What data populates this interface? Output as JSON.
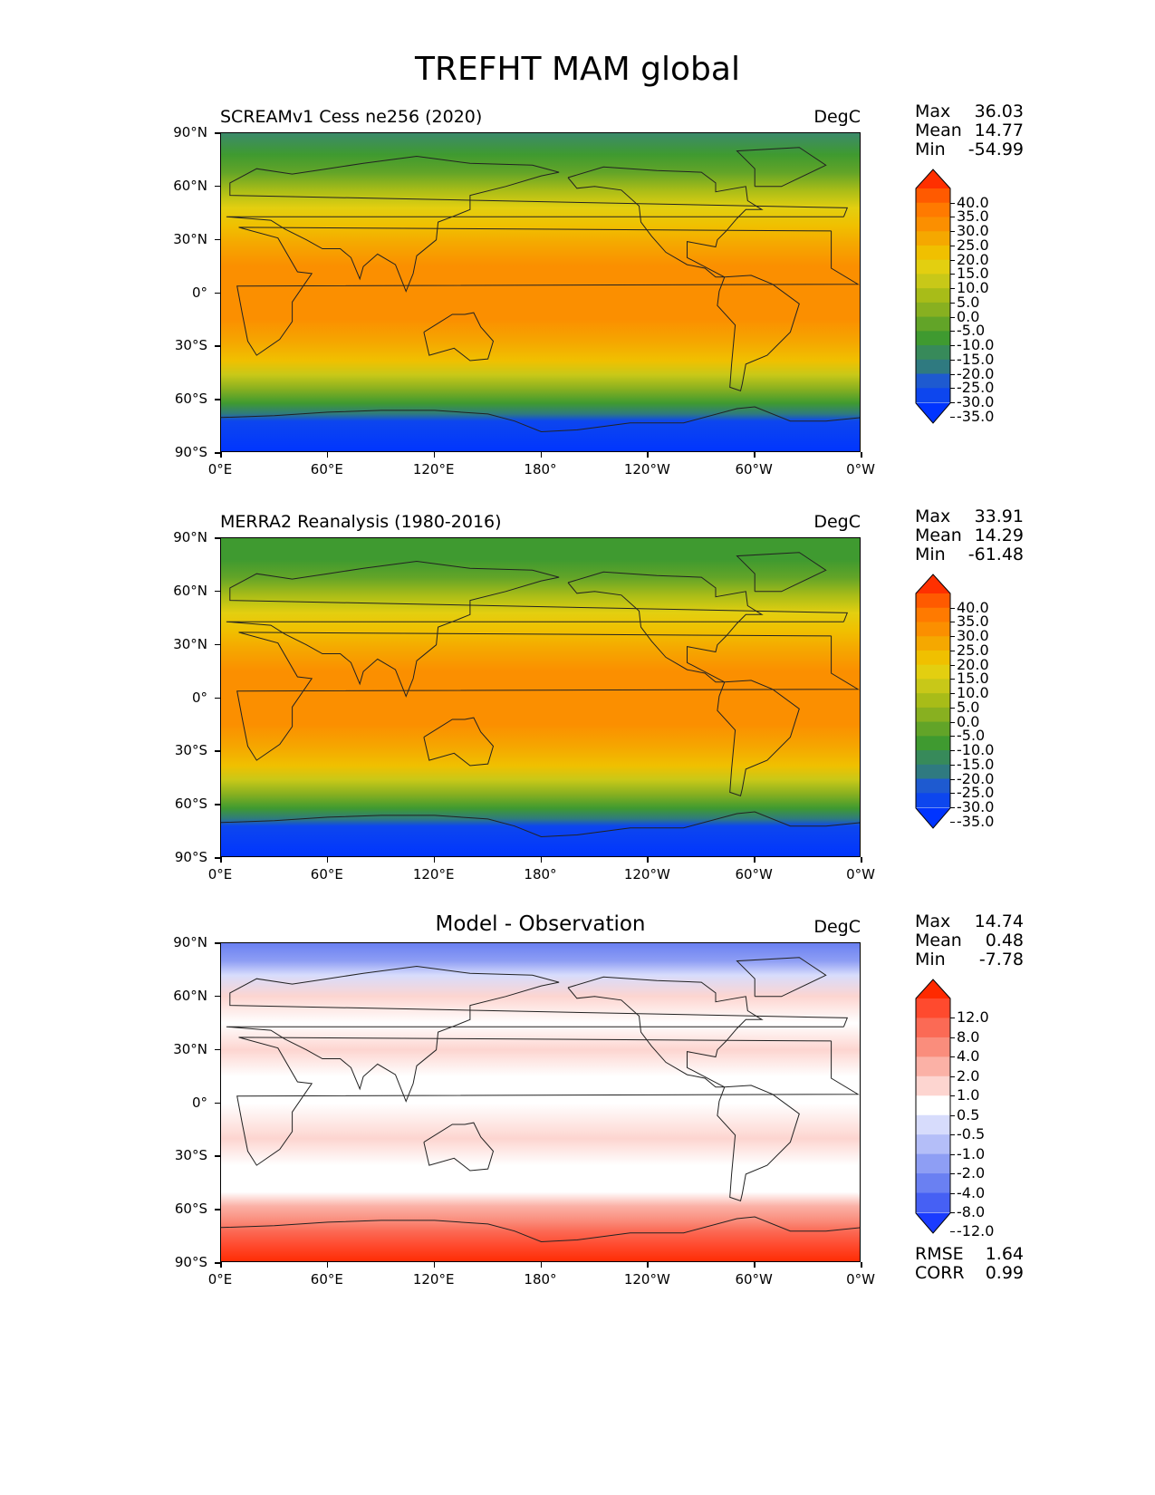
{
  "figure": {
    "title": "TREFHT MAM global"
  },
  "axes": {
    "lat_ticks": [
      "90°N",
      "60°N",
      "30°N",
      "0°",
      "30°S",
      "60°S",
      "90°S"
    ],
    "lon_ticks": [
      "0°E",
      "60°E",
      "120°E",
      "180°",
      "120°W",
      "60°W",
      "0°W"
    ]
  },
  "panels": [
    {
      "title": "SCREAMv1 Cess ne256 (2020)",
      "units": "DegC",
      "stats": [
        {
          "label": "Max",
          "value": "36.03"
        },
        {
          "label": "Mean",
          "value": "14.77"
        },
        {
          "label": "Min",
          "value": "-54.99"
        }
      ],
      "colorbar": {
        "ticks": [
          "40.0",
          "35.0",
          "30.0",
          "25.0",
          "20.0",
          "15.0",
          "10.0",
          "5.0",
          "0.0",
          "-5.0",
          "-10.0",
          "-15.0",
          "-20.0",
          "-25.0",
          "-30.0",
          "-35.0"
        ],
        "colors": [
          "#ff3000",
          "#ff5a00",
          "#ff7a00",
          "#fb8f00",
          "#f5a800",
          "#f0c000",
          "#e3cf10",
          "#c8c818",
          "#a8bc18",
          "#88b020",
          "#62a428",
          "#3f9a30",
          "#378a5a",
          "#2f7a80",
          "#1e5ad0",
          "#0d46ee",
          "#0034ff"
        ]
      },
      "map_gradient": [
        {
          "lat": 90,
          "color": "#3c8a6a"
        },
        {
          "lat": 78,
          "color": "#3f9a30"
        },
        {
          "lat": 68,
          "color": "#62a428"
        },
        {
          "lat": 58,
          "color": "#a8bc18"
        },
        {
          "lat": 48,
          "color": "#e3cf10"
        },
        {
          "lat": 38,
          "color": "#f0c000"
        },
        {
          "lat": 28,
          "color": "#f5a800"
        },
        {
          "lat": 15,
          "color": "#fb8f00"
        },
        {
          "lat": 0,
          "color": "#fb8f00"
        },
        {
          "lat": -15,
          "color": "#fb8f00"
        },
        {
          "lat": -28,
          "color": "#f5a800"
        },
        {
          "lat": -38,
          "color": "#f0c000"
        },
        {
          "lat": -46,
          "color": "#c8c818"
        },
        {
          "lat": -54,
          "color": "#88b020"
        },
        {
          "lat": -62,
          "color": "#3f9a30"
        },
        {
          "lat": -68,
          "color": "#2f7a80"
        },
        {
          "lat": -72,
          "color": "#0d46ee"
        },
        {
          "lat": -90,
          "color": "#0034ff"
        }
      ]
    },
    {
      "title": "MERRA2 Reanalysis (1980-2016)",
      "units": "DegC",
      "stats": [
        {
          "label": "Max",
          "value": "33.91"
        },
        {
          "label": "Mean",
          "value": "14.29"
        },
        {
          "label": "Min",
          "value": "-61.48"
        }
      ],
      "colorbar": {
        "ticks": [
          "40.0",
          "35.0",
          "30.0",
          "25.0",
          "20.0",
          "15.0",
          "10.0",
          "5.0",
          "0.0",
          "-5.0",
          "-10.0",
          "-15.0",
          "-20.0",
          "-25.0",
          "-30.0",
          "-35.0"
        ],
        "colors": [
          "#ff3000",
          "#ff5a00",
          "#ff7a00",
          "#fb8f00",
          "#f5a800",
          "#f0c000",
          "#e3cf10",
          "#c8c818",
          "#a8bc18",
          "#88b020",
          "#62a428",
          "#3f9a30",
          "#378a5a",
          "#2f7a80",
          "#1e5ad0",
          "#0d46ee",
          "#0034ff"
        ]
      },
      "map_gradient": [
        {
          "lat": 90,
          "color": "#3f9a30"
        },
        {
          "lat": 78,
          "color": "#3f9a30"
        },
        {
          "lat": 68,
          "color": "#62a428"
        },
        {
          "lat": 58,
          "color": "#a8bc18"
        },
        {
          "lat": 48,
          "color": "#e3cf10"
        },
        {
          "lat": 38,
          "color": "#f0c000"
        },
        {
          "lat": 28,
          "color": "#f5a800"
        },
        {
          "lat": 15,
          "color": "#fb8f00"
        },
        {
          "lat": 0,
          "color": "#fb8f00"
        },
        {
          "lat": -15,
          "color": "#fb8f00"
        },
        {
          "lat": -28,
          "color": "#f5a800"
        },
        {
          "lat": -38,
          "color": "#f0c000"
        },
        {
          "lat": -46,
          "color": "#c8c818"
        },
        {
          "lat": -54,
          "color": "#88b020"
        },
        {
          "lat": -62,
          "color": "#3f9a30"
        },
        {
          "lat": -68,
          "color": "#2f7a80"
        },
        {
          "lat": -72,
          "color": "#0d46ee"
        },
        {
          "lat": -90,
          "color": "#0034ff"
        }
      ]
    },
    {
      "title": "Model - Observation",
      "units": "DegC",
      "stats": [
        {
          "label": "Max",
          "value": "14.74"
        },
        {
          "label": "Mean",
          "value": "0.48"
        },
        {
          "label": "Min",
          "value": "-7.78"
        }
      ],
      "extra_stats": [
        {
          "label": "RMSE",
          "value": "1.64"
        },
        {
          "label": "CORR",
          "value": "0.99"
        }
      ],
      "colorbar": {
        "ticks": [
          "12.0",
          "8.0",
          "4.0",
          "2.0",
          "1.0",
          "0.5",
          "-0.5",
          "-1.0",
          "-2.0",
          "-4.0",
          "-8.0",
          "-12.0"
        ],
        "colors": [
          "#ff2a00",
          "#ff4a2e",
          "#fb6a55",
          "#fa8d7c",
          "#fbb1a6",
          "#fdd5d0",
          "#ffffff",
          "#d7dcfc",
          "#b4bef8",
          "#8e9ef4",
          "#6a80f2",
          "#4660f4",
          "#1a3bff"
        ]
      },
      "map_gradient": [
        {
          "lat": 90,
          "color": "#6a80f2"
        },
        {
          "lat": 80,
          "color": "#8e9ef4"
        },
        {
          "lat": 72,
          "color": "#d7dcfc"
        },
        {
          "lat": 60,
          "color": "#fdd5d0"
        },
        {
          "lat": 45,
          "color": "#ffffff"
        },
        {
          "lat": 30,
          "color": "#fdd5d0"
        },
        {
          "lat": 15,
          "color": "#ffffff"
        },
        {
          "lat": 0,
          "color": "#ffffff"
        },
        {
          "lat": -20,
          "color": "#fdd5d0"
        },
        {
          "lat": -35,
          "color": "#ffffff"
        },
        {
          "lat": -50,
          "color": "#ffffff"
        },
        {
          "lat": -58,
          "color": "#fbb1a6"
        },
        {
          "lat": -66,
          "color": "#fa8d7c"
        },
        {
          "lat": -72,
          "color": "#fb6a55"
        },
        {
          "lat": -80,
          "color": "#ff4a2e"
        },
        {
          "lat": -90,
          "color": "#ff2a00"
        }
      ]
    }
  ]
}
